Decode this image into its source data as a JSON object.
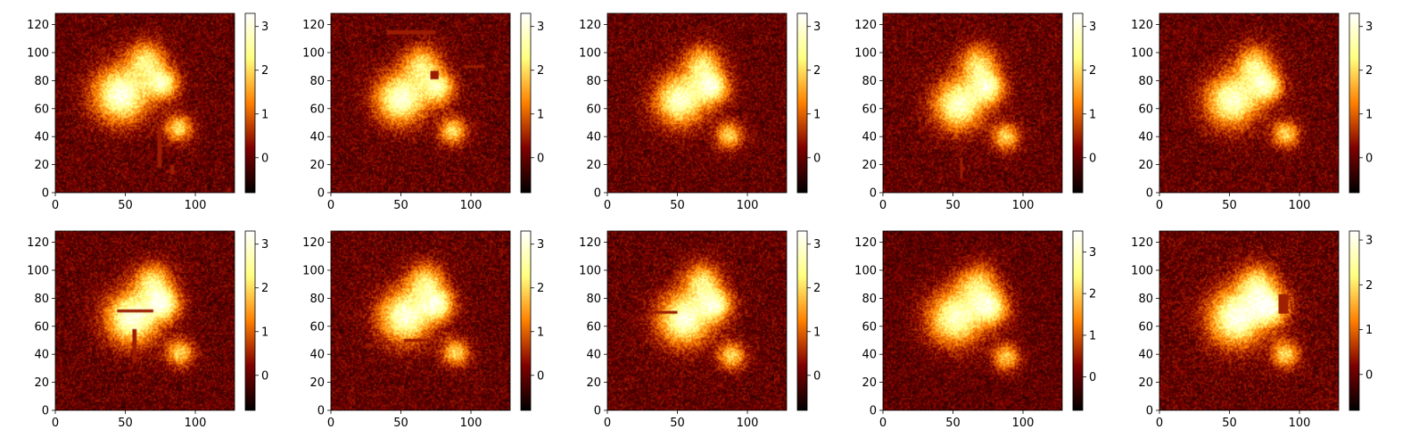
{
  "chart_data": [
    {
      "type": "heatmap",
      "row": 0,
      "col": 0,
      "xlim": [
        0,
        128
      ],
      "ylim": [
        0,
        128
      ],
      "x_ticks": [
        0,
        50,
        100
      ],
      "y_ticks": [
        0,
        20,
        40,
        60,
        80,
        100,
        120
      ],
      "colorbar": {
        "colormap": "afmhot",
        "ticks": [
          0,
          1,
          2,
          3
        ],
        "range": [
          -0.8,
          3.3
        ]
      },
      "blobs": [
        {
          "x": 47,
          "y": 70,
          "r": 22,
          "v": 3.1
        },
        {
          "x": 65,
          "y": 95,
          "r": 15,
          "v": 2.0
        },
        {
          "x": 77,
          "y": 78,
          "r": 13,
          "v": 2.4
        },
        {
          "x": 88,
          "y": 46,
          "r": 11,
          "v": 2.1
        }
      ],
      "masks": [
        {
          "x0": 73,
          "x1": 76,
          "y0": 18,
          "y1": 48
        },
        {
          "x0": 82,
          "x1": 85,
          "y0": 13,
          "y1": 20
        }
      ]
    },
    {
      "type": "heatmap",
      "row": 0,
      "col": 1,
      "xlim": [
        0,
        128
      ],
      "ylim": [
        0,
        128
      ],
      "x_ticks": [
        0,
        50,
        100
      ],
      "y_ticks": [
        0,
        20,
        40,
        60,
        80,
        100,
        120
      ],
      "colorbar": {
        "colormap": "afmhot",
        "ticks": [
          0,
          1,
          2,
          3
        ],
        "range": [
          -0.8,
          3.3
        ]
      },
      "blobs": [
        {
          "x": 50,
          "y": 67,
          "r": 20,
          "v": 3.0
        },
        {
          "x": 65,
          "y": 92,
          "r": 15,
          "v": 2.0
        },
        {
          "x": 77,
          "y": 75,
          "r": 13,
          "v": 2.3
        },
        {
          "x": 87,
          "y": 44,
          "r": 11,
          "v": 2.1
        }
      ],
      "masks": [
        {
          "x0": 40,
          "x1": 75,
          "y0": 113,
          "y1": 116
        },
        {
          "x0": 71,
          "x1": 77,
          "y0": 81,
          "y1": 87
        },
        {
          "x0": 95,
          "x1": 110,
          "y0": 89,
          "y1": 91
        }
      ]
    },
    {
      "type": "heatmap",
      "row": 0,
      "col": 2,
      "xlim": [
        0,
        128
      ],
      "ylim": [
        0,
        128
      ],
      "x_ticks": [
        0,
        50,
        100
      ],
      "y_ticks": [
        0,
        20,
        40,
        60,
        80,
        100,
        120
      ],
      "colorbar": {
        "colormap": "afmhot",
        "ticks": [
          0,
          1,
          2,
          3
        ],
        "range": [
          -0.8,
          3.3
        ]
      },
      "blobs": [
        {
          "x": 52,
          "y": 66,
          "r": 20,
          "v": 2.9
        },
        {
          "x": 68,
          "y": 92,
          "r": 15,
          "v": 2.0
        },
        {
          "x": 76,
          "y": 75,
          "r": 13,
          "v": 2.4
        },
        {
          "x": 87,
          "y": 41,
          "r": 11,
          "v": 2.0
        }
      ],
      "masks": []
    },
    {
      "type": "heatmap",
      "row": 0,
      "col": 3,
      "xlim": [
        0,
        128
      ],
      "ylim": [
        0,
        128
      ],
      "x_ticks": [
        0,
        50,
        100
      ],
      "y_ticks": [
        0,
        20,
        40,
        60,
        80,
        100,
        120
      ],
      "colorbar": {
        "colormap": "afmhot",
        "ticks": [
          0,
          1,
          2,
          3
        ],
        "range": [
          -0.8,
          3.3
        ]
      },
      "blobs": [
        {
          "x": 54,
          "y": 63,
          "r": 20,
          "v": 2.9
        },
        {
          "x": 68,
          "y": 92,
          "r": 15,
          "v": 2.0
        },
        {
          "x": 76,
          "y": 75,
          "r": 13,
          "v": 2.3
        },
        {
          "x": 88,
          "y": 40,
          "r": 11,
          "v": 2.0
        }
      ],
      "masks": [
        {
          "x0": 55,
          "x1": 57,
          "y0": 10,
          "y1": 25
        }
      ]
    },
    {
      "type": "heatmap",
      "row": 0,
      "col": 4,
      "xlim": [
        0,
        128
      ],
      "ylim": [
        0,
        128
      ],
      "x_ticks": [
        0,
        50,
        100
      ],
      "y_ticks": [
        0,
        20,
        40,
        60,
        80,
        100,
        120
      ],
      "colorbar": {
        "colormap": "afmhot",
        "ticks": [
          0,
          1,
          2,
          3
        ],
        "range": [
          -0.8,
          3.3
        ]
      },
      "blobs": [
        {
          "x": 52,
          "y": 66,
          "r": 21,
          "v": 2.9
        },
        {
          "x": 68,
          "y": 92,
          "r": 15,
          "v": 2.0
        },
        {
          "x": 77,
          "y": 76,
          "r": 13,
          "v": 2.3
        },
        {
          "x": 90,
          "y": 42,
          "r": 11,
          "v": 2.0
        }
      ],
      "masks": []
    },
    {
      "type": "heatmap",
      "row": 1,
      "col": 0,
      "xlim": [
        0,
        128
      ],
      "ylim": [
        0,
        128
      ],
      "x_ticks": [
        0,
        50,
        100
      ],
      "y_ticks": [
        0,
        20,
        40,
        60,
        80,
        100,
        120
      ],
      "colorbar": {
        "colormap": "afmhot",
        "ticks": [
          0,
          1,
          2,
          3
        ],
        "range": [
          -0.8,
          3.3
        ]
      },
      "blobs": [
        {
          "x": 55,
          "y": 66,
          "r": 21,
          "v": 3.1
        },
        {
          "x": 70,
          "y": 92,
          "r": 15,
          "v": 2.0
        },
        {
          "x": 78,
          "y": 76,
          "r": 13,
          "v": 2.4
        },
        {
          "x": 89,
          "y": 41,
          "r": 11,
          "v": 2.0
        }
      ],
      "masks": [
        {
          "x0": 44,
          "x1": 70,
          "y0": 70,
          "y1": 72
        },
        {
          "x0": 55,
          "x1": 58,
          "y0": 34,
          "y1": 58
        }
      ]
    },
    {
      "type": "heatmap",
      "row": 1,
      "col": 1,
      "xlim": [
        0,
        128
      ],
      "ylim": [
        0,
        128
      ],
      "x_ticks": [
        0,
        50,
        100
      ],
      "y_ticks": [
        0,
        20,
        40,
        60,
        80,
        100,
        120
      ],
      "colorbar": {
        "colormap": "afmhot",
        "ticks": [
          0,
          1,
          2,
          3
        ],
        "range": [
          -0.8,
          3.3
        ]
      },
      "blobs": [
        {
          "x": 53,
          "y": 67,
          "r": 21,
          "v": 3.0
        },
        {
          "x": 68,
          "y": 92,
          "r": 15,
          "v": 2.0
        },
        {
          "x": 77,
          "y": 75,
          "r": 13,
          "v": 2.3
        },
        {
          "x": 89,
          "y": 41,
          "r": 11,
          "v": 2.0
        }
      ],
      "masks": [
        {
          "x0": 52,
          "x1": 70,
          "y0": 49,
          "y1": 51
        },
        {
          "x0": 25,
          "x1": 30,
          "y0": 46,
          "y1": 47
        }
      ]
    },
    {
      "type": "heatmap",
      "row": 1,
      "col": 2,
      "xlim": [
        0,
        128
      ],
      "ylim": [
        0,
        128
      ],
      "x_ticks": [
        0,
        50,
        100
      ],
      "y_ticks": [
        0,
        20,
        40,
        60,
        80,
        100,
        120
      ],
      "colorbar": {
        "colormap": "afmhot",
        "ticks": [
          0,
          1,
          2,
          3
        ],
        "range": [
          -0.8,
          3.3
        ]
      },
      "blobs": [
        {
          "x": 55,
          "y": 65,
          "r": 21,
          "v": 3.0
        },
        {
          "x": 68,
          "y": 92,
          "r": 15,
          "v": 2.0
        },
        {
          "x": 78,
          "y": 75,
          "r": 13,
          "v": 2.3
        },
        {
          "x": 89,
          "y": 39,
          "r": 11,
          "v": 2.0
        }
      ],
      "masks": [
        {
          "x0": 29,
          "x1": 50,
          "y0": 69,
          "y1": 71
        }
      ]
    },
    {
      "type": "heatmap",
      "row": 1,
      "col": 3,
      "xlim": [
        0,
        128
      ],
      "ylim": [
        0,
        128
      ],
      "x_ticks": [
        0,
        50,
        100
      ],
      "y_ticks": [
        0,
        20,
        40,
        60,
        80,
        100,
        120
      ],
      "colorbar": {
        "colormap": "afmhot",
        "ticks": [
          0,
          1,
          2,
          3
        ],
        "range": [
          -0.8,
          3.5
        ]
      },
      "blobs": [
        {
          "x": 52,
          "y": 66,
          "r": 22,
          "v": 3.0
        },
        {
          "x": 68,
          "y": 90,
          "r": 16,
          "v": 2.0
        },
        {
          "x": 78,
          "y": 73,
          "r": 14,
          "v": 2.4
        },
        {
          "x": 88,
          "y": 38,
          "r": 11,
          "v": 2.0
        }
      ],
      "masks": []
    },
    {
      "type": "heatmap",
      "row": 1,
      "col": 4,
      "xlim": [
        0,
        128
      ],
      "ylim": [
        0,
        128
      ],
      "x_ticks": [
        0,
        50,
        100
      ],
      "y_ticks": [
        0,
        20,
        40,
        60,
        80,
        100,
        120
      ],
      "colorbar": {
        "colormap": "afmhot",
        "ticks": [
          0,
          1,
          2,
          3
        ],
        "range": [
          -0.8,
          3.2
        ]
      },
      "blobs": [
        {
          "x": 55,
          "y": 66,
          "r": 22,
          "v": 3.1
        },
        {
          "x": 70,
          "y": 90,
          "r": 16,
          "v": 2.0
        },
        {
          "x": 80,
          "y": 73,
          "r": 14,
          "v": 2.4
        },
        {
          "x": 90,
          "y": 40,
          "r": 11,
          "v": 2.0
        }
      ],
      "masks": [
        {
          "x0": 85,
          "x1": 92,
          "y0": 69,
          "y1": 83
        }
      ]
    }
  ]
}
